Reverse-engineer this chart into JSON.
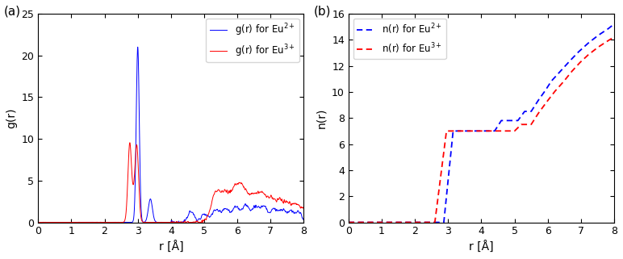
{
  "panel_a": {
    "title": "(a)",
    "xlabel": "r [Å]",
    "ylabel": "g(r)",
    "xlim": [
      0,
      8
    ],
    "ylim": [
      0,
      25
    ],
    "yticks": [
      0,
      5,
      10,
      15,
      20,
      25
    ],
    "xticks": [
      0,
      1,
      2,
      3,
      4,
      5,
      6,
      7,
      8
    ],
    "legend": [
      "g(r) for Eu$^{2+}$",
      "g(r) for Eu$^{3+}$"
    ],
    "colors": [
      "blue",
      "red"
    ]
  },
  "panel_b": {
    "title": "(b)",
    "xlabel": "r [Å]",
    "ylabel": "n(r)",
    "xlim": [
      0,
      8
    ],
    "ylim": [
      0,
      16
    ],
    "yticks": [
      0,
      2,
      4,
      6,
      8,
      10,
      12,
      14,
      16
    ],
    "xticks": [
      0,
      1,
      2,
      3,
      4,
      5,
      6,
      7,
      8
    ],
    "legend": [
      "n(r) for Eu$^{2+}$",
      "n(r) for Eu$^{3+}$"
    ],
    "colors": [
      "blue",
      "red"
    ]
  }
}
